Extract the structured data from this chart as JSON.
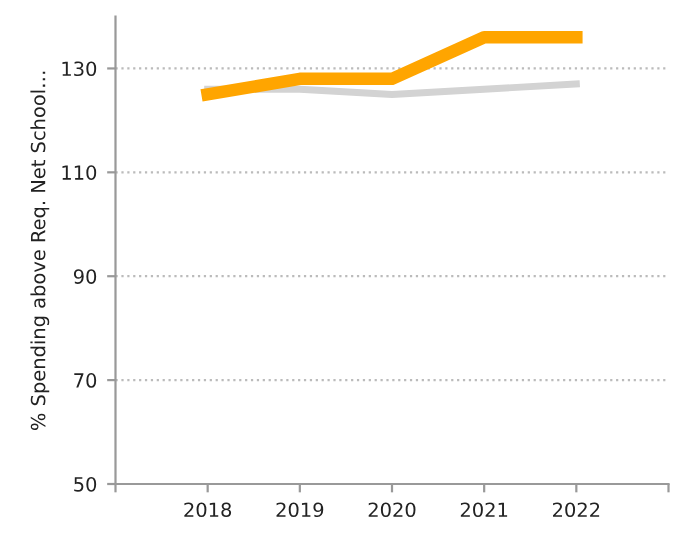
{
  "chart_data": {
    "type": "line",
    "ylabel": "% Spending above Req. Net School…",
    "x": [
      2018,
      2019,
      2020,
      2021,
      2022
    ],
    "series": [
      {
        "color": "#d3d3d3",
        "values": [
          126,
          126,
          125,
          126,
          127
        ]
      },
      {
        "color": "#ffa500",
        "values": [
          125,
          128,
          128,
          136,
          136
        ]
      }
    ],
    "xlim": [
      2017,
      2023
    ],
    "xticks": [
      {
        "value": 2017,
        "label": null
      },
      2018,
      2019,
      2020,
      2021,
      2022,
      {
        "value": 2023,
        "label": null
      }
    ],
    "ylim": [
      50,
      140
    ],
    "yticks": [
      50,
      70,
      90,
      110,
      130
    ],
    "grid": "y",
    "line_style": "solid",
    "marker": "none",
    "legend": false
  }
}
